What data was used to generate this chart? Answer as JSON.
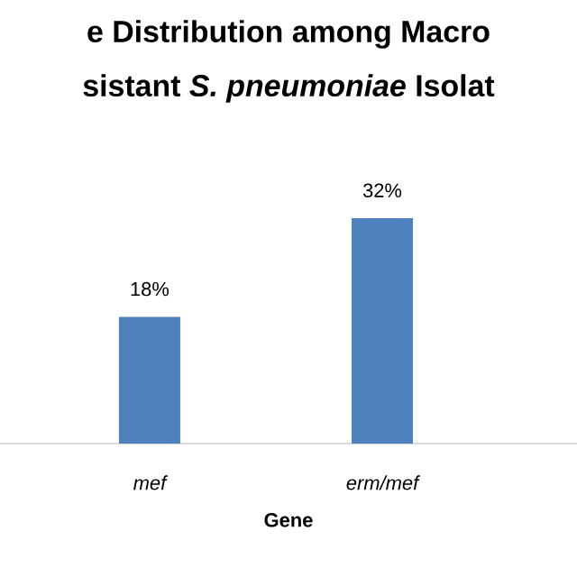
{
  "chart_data": {
    "type": "bar",
    "title": "e Distribution among Macro",
    "subtitle": "sistant *S. pneumoniae* Isolat",
    "xlabel": "Gene",
    "categories": [
      "mef",
      "erm/mef"
    ],
    "values": [
      18,
      32
    ],
    "color": "#4f81bd",
    "value_labels": [
      "18%",
      "32%"
    ]
  }
}
